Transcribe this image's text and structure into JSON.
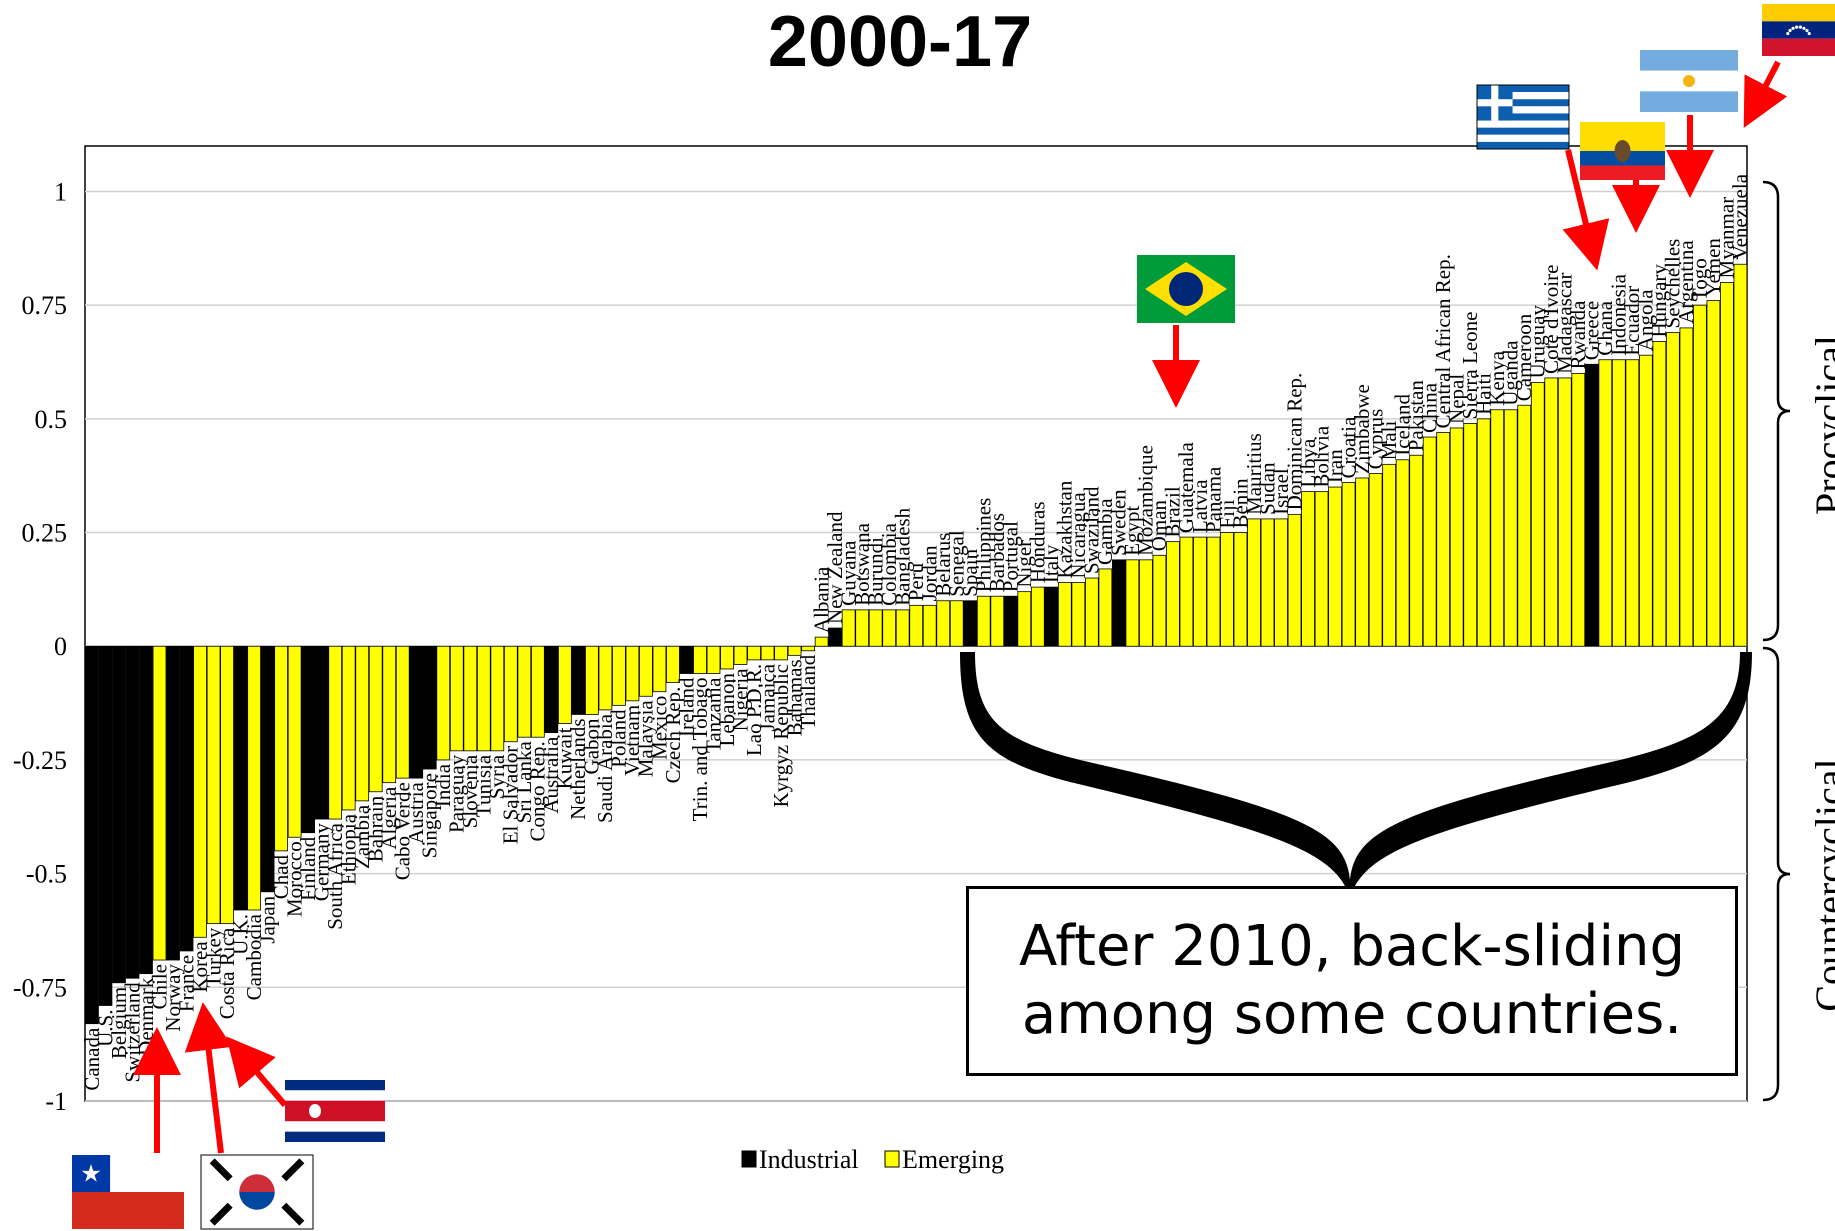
{
  "chart_data": {
    "type": "bar",
    "title": "2000-17",
    "ylim": [
      -1,
      1.1
    ],
    "yticks": [
      "1",
      "0.75",
      "0.5",
      "0.25",
      "0",
      "-0.25",
      "-0.5",
      "-0.75",
      "-1"
    ],
    "grid": "horizontal",
    "legend_position": "bottom-center",
    "colors": {
      "Industrial": "#000000",
      "Emerging": "#ffff00",
      "grid": "#d0d0d0",
      "arrow": "#ff0000"
    },
    "series": [
      {
        "name": "Industrial"
      },
      {
        "name": "Emerging"
      }
    ],
    "categories": [
      "Canada",
      "U.S.",
      "Belgium",
      "Switzerland",
      "Denmark",
      "Chile",
      "Norway",
      "France",
      "Korea",
      "Turkey",
      "Costa Rica",
      "U.K.",
      "Cambodia",
      "Japan",
      "Chad",
      "Morocco",
      "Finland",
      "Germany",
      "South Africa",
      "Ethiopia",
      "Zambia",
      "Bahrain",
      "Algeria",
      "Cabo Verde",
      "Austria",
      "Singapore",
      "India",
      "Paraguay",
      "Slovenia",
      "Tunisia",
      "Syria",
      "El Salvador",
      "Sri Lanka",
      "Congo Rep.",
      "Australia",
      "Kuwait",
      "Netherlands",
      "Gabon",
      "Saudi Arabia",
      "Poland",
      "Vietnam",
      "Malaysia",
      "Mexico",
      "Czech Rep.",
      "Ireland",
      "Trin. and Tobago",
      "Tanzania",
      "Lebanon",
      "Nigeria",
      "Lao P.D.R.",
      "Jamaica",
      "Kyrgyz Republic",
      "Bahamas",
      "Thailand",
      "Albania",
      "New Zealand",
      "Guyana",
      "Botswana",
      "Burundi",
      "Colombia",
      "Bangladesh",
      "Peru",
      "Jordan",
      "Belarus",
      "Senegal",
      "Spain",
      "Philippines",
      "Barbados",
      "Portugal",
      "Niger",
      "Honduras",
      "Italy",
      "Kazakhstan",
      "Nicaragua",
      "Swaziland",
      "Gambia",
      "Sweden",
      "Egypt",
      "Mozambique",
      "Oman",
      "Brazil",
      "Guatemala",
      "Latvia",
      "Panama",
      "Fiji",
      "Benin",
      "Mauritius",
      "Sudan",
      "Israel",
      "Dominican Rep.",
      "Libya",
      "Bolivia",
      "Iran",
      "Croatia",
      "Zimbabwe",
      "Cyprus",
      "Mali",
      "Iceland",
      "Pakistan",
      "China",
      "Central African Rep.",
      "Nepal",
      "Sierra Leone",
      "Haiti",
      "Kenya",
      "Uganda",
      "Cameroon",
      "Uruguay",
      "Cote d'Ivoire",
      "Madagascar",
      "Rwanda",
      "Greece",
      "Ghana",
      "Indonesia",
      "Ecuador",
      "Angola",
      "Hungary",
      "Seychelles",
      "Argentina",
      "Togo",
      "Yemen",
      "Myanmar",
      "Venezuela"
    ],
    "values": [
      -0.83,
      -0.79,
      -0.74,
      -0.73,
      -0.72,
      -0.69,
      -0.69,
      -0.67,
      -0.64,
      -0.61,
      -0.61,
      -0.58,
      -0.58,
      -0.54,
      -0.45,
      -0.42,
      -0.41,
      -0.38,
      -0.38,
      -0.36,
      -0.34,
      -0.32,
      -0.3,
      -0.29,
      -0.29,
      -0.27,
      -0.25,
      -0.23,
      -0.23,
      -0.23,
      -0.23,
      -0.21,
      -0.2,
      -0.2,
      -0.19,
      -0.17,
      -0.15,
      -0.15,
      -0.14,
      -0.13,
      -0.12,
      -0.11,
      -0.1,
      -0.08,
      -0.06,
      -0.06,
      -0.06,
      -0.05,
      -0.04,
      -0.03,
      -0.03,
      -0.03,
      -0.02,
      -0.01,
      0.02,
      0.04,
      0.08,
      0.08,
      0.08,
      0.08,
      0.08,
      0.09,
      0.09,
      0.1,
      0.1,
      0.1,
      0.11,
      0.11,
      0.11,
      0.12,
      0.13,
      0.13,
      0.14,
      0.14,
      0.15,
      0.17,
      0.19,
      0.19,
      0.19,
      0.2,
      0.23,
      0.24,
      0.24,
      0.24,
      0.25,
      0.25,
      0.28,
      0.28,
      0.28,
      0.29,
      0.34,
      0.34,
      0.35,
      0.36,
      0.37,
      0.38,
      0.4,
      0.41,
      0.42,
      0.46,
      0.47,
      0.48,
      0.49,
      0.5,
      0.52,
      0.52,
      0.53,
      0.58,
      0.59,
      0.59,
      0.6,
      0.62,
      0.63,
      0.63,
      0.63,
      0.64,
      0.67,
      0.69,
      0.7,
      0.75,
      0.76,
      0.8,
      0.84
    ],
    "groups": [
      "Industrial",
      "Industrial",
      "Industrial",
      "Industrial",
      "Industrial",
      "Emerging",
      "Industrial",
      "Industrial",
      "Emerging",
      "Emerging",
      "Emerging",
      "Industrial",
      "Emerging",
      "Industrial",
      "Emerging",
      "Emerging",
      "Industrial",
      "Industrial",
      "Emerging",
      "Emerging",
      "Emerging",
      "Emerging",
      "Emerging",
      "Emerging",
      "Industrial",
      "Industrial",
      "Emerging",
      "Emerging",
      "Emerging",
      "Emerging",
      "Emerging",
      "Emerging",
      "Emerging",
      "Emerging",
      "Industrial",
      "Emerging",
      "Industrial",
      "Emerging",
      "Emerging",
      "Emerging",
      "Emerging",
      "Emerging",
      "Emerging",
      "Emerging",
      "Industrial",
      "Emerging",
      "Emerging",
      "Emerging",
      "Emerging",
      "Emerging",
      "Emerging",
      "Emerging",
      "Emerging",
      "Emerging",
      "Emerging",
      "Industrial",
      "Emerging",
      "Emerging",
      "Emerging",
      "Emerging",
      "Emerging",
      "Emerging",
      "Emerging",
      "Emerging",
      "Emerging",
      "Industrial",
      "Emerging",
      "Emerging",
      "Industrial",
      "Emerging",
      "Emerging",
      "Industrial",
      "Emerging",
      "Emerging",
      "Emerging",
      "Emerging",
      "Industrial",
      "Emerging",
      "Emerging",
      "Emerging",
      "Emerging",
      "Emerging",
      "Emerging",
      "Emerging",
      "Emerging",
      "Emerging",
      "Emerging",
      "Emerging",
      "Emerging",
      "Emerging",
      "Emerging",
      "Emerging",
      "Emerging",
      "Emerging",
      "Emerging",
      "Emerging",
      "Emerging",
      "Emerging",
      "Emerging",
      "Emerging",
      "Emerging",
      "Emerging",
      "Emerging",
      "Emerging",
      "Emerging",
      "Emerging",
      "Emerging",
      "Emerging",
      "Emerging",
      "Emerging",
      "Emerging",
      "Industrial",
      "Emerging",
      "Emerging",
      "Emerging",
      "Emerging",
      "Emerging",
      "Emerging",
      "Emerging",
      "Emerging",
      "Emerging",
      "Emerging",
      "Emerging"
    ],
    "annotations": {
      "note": "After 2010, back-sliding among some countries.",
      "procyclical": "Procyclical",
      "countercyclical": "Countercyclical"
    },
    "flags": [
      {
        "country": "Chile",
        "icon": "chile-flag"
      },
      {
        "country": "Korea",
        "icon": "korea-flag"
      },
      {
        "country": "Costa Rica",
        "icon": "costa-rica-flag"
      },
      {
        "country": "Brazil",
        "icon": "brazil-flag"
      },
      {
        "country": "Greece",
        "icon": "greece-flag"
      },
      {
        "country": "Ecuador",
        "icon": "ecuador-flag"
      },
      {
        "country": "Argentina",
        "icon": "argentina-flag"
      },
      {
        "country": "Venezuela",
        "icon": "venezuela-flag"
      }
    ]
  }
}
